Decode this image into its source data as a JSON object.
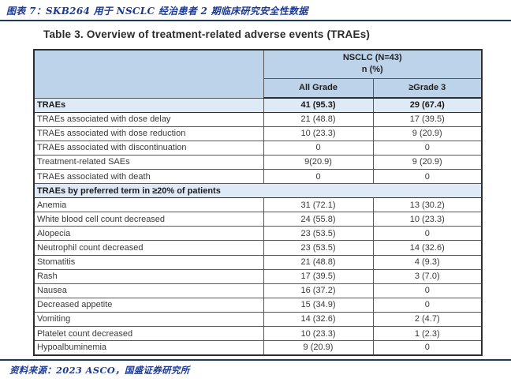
{
  "page": {
    "figure_caption": "图表 7：SKB264 用于 NSCLC 经治患者 2 期临床研究安全性数据",
    "source_note": "资料来源：2023 ASCO，国盛证券研究所"
  },
  "table": {
    "title": "Table 3. Overview of treatment-related adverse events (TRAEs)",
    "group_header": {
      "line1": "NSCLC (N=43)",
      "line2": "n (%)"
    },
    "columns": [
      "All Grade",
      "≥Grade 3"
    ],
    "rows": [
      {
        "type": "section",
        "label": "TRAEs",
        "all_grade": "41 (95.3)",
        "grade3plus": "29 (67.4)"
      },
      {
        "type": "data",
        "label": "TRAEs associated with  dose delay",
        "all_grade": "21 (48.8)",
        "grade3plus": "17 (39.5)"
      },
      {
        "type": "data",
        "label": "TRAEs associated with dose reduction",
        "all_grade": "10 (23.3)",
        "grade3plus": "9 (20.9)"
      },
      {
        "type": "data",
        "label": "TRAEs associated with discontinuation",
        "all_grade": "0",
        "grade3plus": "0"
      },
      {
        "type": "data",
        "label": "Treatment-related SAEs",
        "all_grade": "9(20.9)",
        "grade3plus": "9 (20.9)"
      },
      {
        "type": "data",
        "label": "TRAEs associated with death",
        "all_grade": "0",
        "grade3plus": "0"
      },
      {
        "type": "section_full",
        "label": "TRAEs by preferred term in ≥20% of patients",
        "all_grade": "",
        "grade3plus": ""
      },
      {
        "type": "data",
        "label": "Anemia",
        "all_grade": "31 (72.1)",
        "grade3plus": "13 (30.2)"
      },
      {
        "type": "data",
        "label": "White blood cell count decreased",
        "all_grade": "24 (55.8)",
        "grade3plus": "10 (23.3)"
      },
      {
        "type": "data",
        "label": "Alopecia",
        "all_grade": "23 (53.5)",
        "grade3plus": "0"
      },
      {
        "type": "data",
        "label": "Neutrophil count decreased",
        "all_grade": "23 (53.5)",
        "grade3plus": "14 (32.6)"
      },
      {
        "type": "data",
        "label": "Stomatitis",
        "all_grade": "21 (48.8)",
        "grade3plus": "4 (9.3)"
      },
      {
        "type": "data",
        "label": "Rash",
        "all_grade": "17 (39.5)",
        "grade3plus": "3 (7.0)"
      },
      {
        "type": "data",
        "label": "Nausea",
        "all_grade": "16 (37.2)",
        "grade3plus": "0"
      },
      {
        "type": "data",
        "label": "Decreased appetite",
        "all_grade": "15 (34.9)",
        "grade3plus": "0"
      },
      {
        "type": "data",
        "label": "Vomiting",
        "all_grade": "14 (32.6)",
        "grade3plus": "2 (4.7)"
      },
      {
        "type": "data",
        "label": "Platelet count decreased",
        "all_grade": "10 (23.3)",
        "grade3plus": "1 (2.3)"
      },
      {
        "type": "data",
        "label": "Hypoalbuminemia",
        "all_grade": "9 (20.9)",
        "grade3plus": "0"
      }
    ]
  },
  "colors": {
    "rule_navy": "#1F3864",
    "caption_blue": "#1C3A94",
    "header_fill": "#BCD3EA",
    "section_fill": "#DEEAF6",
    "table_border": "#595959",
    "outer_border": "#2F2F2F"
  }
}
